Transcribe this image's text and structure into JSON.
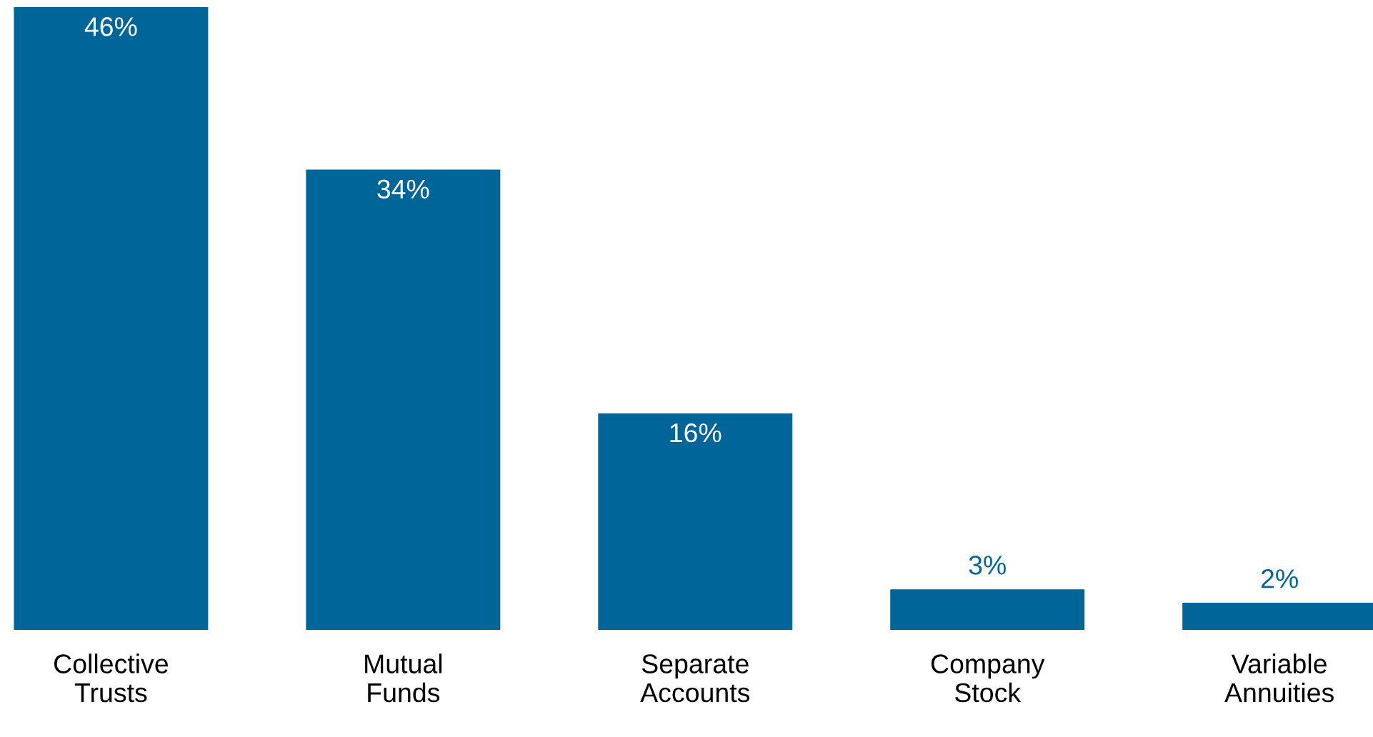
{
  "chart_data": {
    "type": "bar",
    "categories": [
      "Collective\nTrusts",
      "Mutual\nFunds",
      "Separate\nAccounts",
      "Company\nStock",
      "Variable\nAnnuities"
    ],
    "values": [
      46,
      34,
      16,
      3,
      2
    ],
    "value_labels": [
      "46%",
      "34%",
      "16%",
      "3%",
      "2%"
    ],
    "color": "#006699",
    "ylim": [
      0,
      46
    ],
    "grid": false,
    "legend": false
  }
}
